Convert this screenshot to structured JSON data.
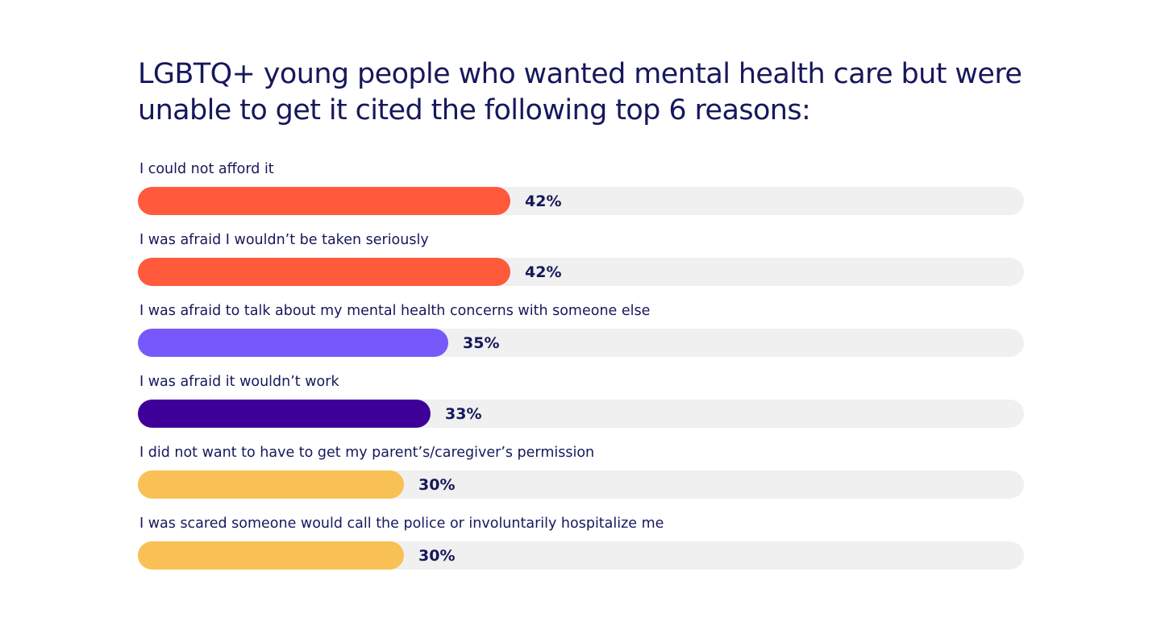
{
  "chart_data": {
    "type": "bar",
    "orientation": "horizontal",
    "title": "LGBTQ+ young people who wanted mental health care but were unable to get it cited the following top 6 reasons:",
    "xlim": [
      0,
      100
    ],
    "grid": false,
    "categories": [
      "I could not afford it",
      "I was afraid I wouldn’t be taken seriously",
      "I was afraid to talk about my mental health concerns with someone else",
      "I was afraid it wouldn’t work",
      "I did not want to have to get my parent’s/caregiver’s permission",
      "I was scared someone would call the police or involuntarily hospitalize me"
    ],
    "values": [
      42,
      42,
      35,
      33,
      30,
      30
    ],
    "value_labels": [
      "42%",
      "42%",
      "35%",
      "33%",
      "30%",
      "30%"
    ],
    "bar_colors": [
      "#ff5a3c",
      "#ff5a3c",
      "#7759fb",
      "#3f0099",
      "#f9c055",
      "#f9c055"
    ],
    "track_color": "#f0f0f0",
    "text_color": "#16185c"
  }
}
